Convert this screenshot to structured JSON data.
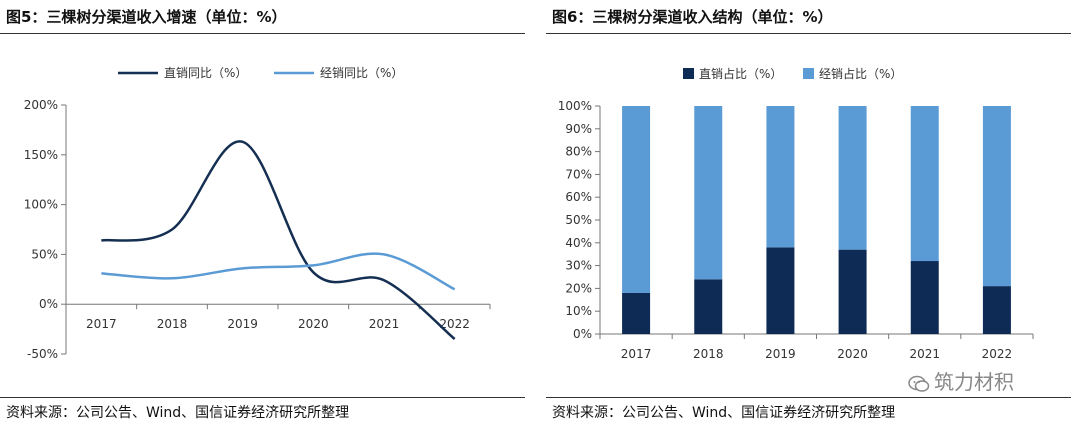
{
  "figure5": {
    "title": "图5：三棵树分渠道收入增速（单位：%）",
    "source": "资料来源：公司公告、Wind、国信证券经济研究所整理"
  },
  "figure6": {
    "title": "图6：三棵树分渠道收入结构（单位：%）",
    "source": "资料来源：公司公告、Wind、国信证券经济研究所整理"
  },
  "watermark": "筑力材积",
  "chart_data": [
    {
      "type": "line",
      "categories": [
        "2017",
        "2018",
        "2019",
        "2020",
        "2021",
        "2022"
      ],
      "series": [
        {
          "name": "直销同比（%）",
          "values": [
            64,
            75,
            163,
            32,
            24,
            -35
          ],
          "color": "#152f52"
        },
        {
          "name": "经销同比（%）",
          "values": [
            31,
            26,
            36,
            39,
            50,
            15
          ],
          "color": "#5b9bd5"
        }
      ],
      "ylim": [
        -50,
        200
      ],
      "yticks": [
        "-50%",
        "0%",
        "50%",
        "100%",
        "150%",
        "200%"
      ],
      "ytick_values": [
        -50,
        0,
        50,
        100,
        150,
        200
      ],
      "legend": "top-center",
      "grid": false
    },
    {
      "type": "bar",
      "stacked": true,
      "categories": [
        "2017",
        "2018",
        "2019",
        "2020",
        "2021",
        "2022"
      ],
      "series": [
        {
          "name": "直销占比（%）",
          "values": [
            18,
            24,
            38,
            37,
            32,
            21
          ],
          "color": "#0d2b55"
        },
        {
          "name": "经销占比（%）",
          "values": [
            82,
            76,
            62,
            63,
            68,
            79
          ],
          "color": "#5b9bd5"
        }
      ],
      "ylim": [
        0,
        100
      ],
      "yticks": [
        "0%",
        "10%",
        "20%",
        "30%",
        "40%",
        "50%",
        "60%",
        "70%",
        "80%",
        "90%",
        "100%"
      ],
      "ytick_values": [
        0,
        10,
        20,
        30,
        40,
        50,
        60,
        70,
        80,
        90,
        100
      ],
      "legend": "top-center",
      "grid": false
    }
  ]
}
